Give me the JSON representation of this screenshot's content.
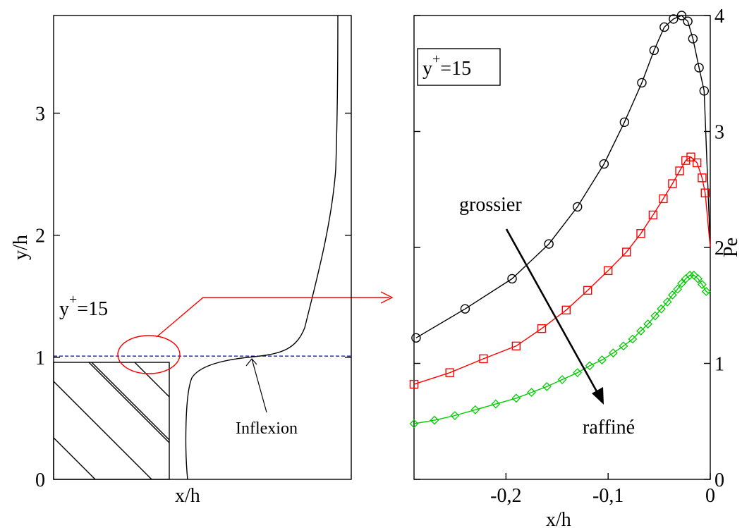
{
  "chart_data": [
    {
      "type": "line",
      "xlabel": "x/h",
      "ylabel": "y/h",
      "ylim": [
        0,
        3.8
      ],
      "yticks": [
        "0",
        "1",
        "2",
        "3"
      ],
      "annotations": {
        "yplus_label": "y",
        "yplus_sup": "+",
        "yplus_value": "=15",
        "inflexion": "Inflexion"
      },
      "reference_line_y": 1.01,
      "colors": {
        "curve": "#000000",
        "dashed": "#0000cc",
        "marker": "#ff0000"
      }
    },
    {
      "type": "line",
      "xlabel": "x/h",
      "ylabel": "Pe",
      "xlim": [
        -0.29,
        0
      ],
      "ylim": [
        0,
        4
      ],
      "xticks": [
        {
          "value": -0.2,
          "label": "-0,2"
        },
        {
          "value": -0.1,
          "label": "-0,1"
        },
        {
          "value": 0,
          "label": "0"
        }
      ],
      "yticks": [
        "0",
        "1",
        "2",
        "3",
        "4"
      ],
      "legend_box": {
        "y": "y",
        "sup": "+",
        "value": "=15"
      },
      "annotations": {
        "top": "grossier",
        "bottom": "raffiné"
      },
      "series": [
        {
          "color": "#000000",
          "marker": "circle",
          "x": [
            -0.288,
            -0.24,
            -0.194,
            -0.158,
            -0.13,
            -0.104,
            -0.084,
            -0.067,
            -0.055,
            -0.045,
            -0.036,
            -0.028,
            -0.022,
            -0.017,
            -0.011,
            -0.006
          ],
          "y": [
            1.22,
            1.47,
            1.73,
            2.03,
            2.35,
            2.72,
            3.08,
            3.42,
            3.7,
            3.9,
            3.97,
            4.0,
            3.95,
            3.8,
            3.55,
            3.35
          ]
        },
        {
          "color": "#ff0000",
          "marker": "square",
          "x": [
            -0.29,
            -0.255,
            -0.222,
            -0.19,
            -0.165,
            -0.141,
            -0.12,
            -0.1,
            -0.082,
            -0.068,
            -0.056,
            -0.046,
            -0.037,
            -0.03,
            -0.024,
            -0.019,
            -0.013,
            -0.008,
            -0.005
          ],
          "y": [
            0.82,
            0.92,
            1.04,
            1.15,
            1.3,
            1.46,
            1.63,
            1.8,
            1.96,
            2.12,
            2.28,
            2.42,
            2.55,
            2.66,
            2.75,
            2.78,
            2.73,
            2.6,
            2.47
          ]
        },
        {
          "color": "#00cc00",
          "marker": "diamond",
          "x": [
            -0.29,
            -0.27,
            -0.25,
            -0.23,
            -0.21,
            -0.19,
            -0.175,
            -0.16,
            -0.145,
            -0.13,
            -0.118,
            -0.106,
            -0.095,
            -0.085,
            -0.076,
            -0.068,
            -0.061,
            -0.054,
            -0.048,
            -0.042,
            -0.037,
            -0.032,
            -0.028,
            -0.024,
            -0.02,
            -0.016,
            -0.012,
            -0.008,
            -0.004
          ],
          "y": [
            0.48,
            0.51,
            0.55,
            0.6,
            0.65,
            0.7,
            0.75,
            0.8,
            0.86,
            0.92,
            0.98,
            1.03,
            1.09,
            1.15,
            1.21,
            1.28,
            1.34,
            1.41,
            1.47,
            1.53,
            1.59,
            1.64,
            1.69,
            1.73,
            1.76,
            1.76,
            1.73,
            1.68,
            1.62
          ]
        }
      ]
    }
  ]
}
